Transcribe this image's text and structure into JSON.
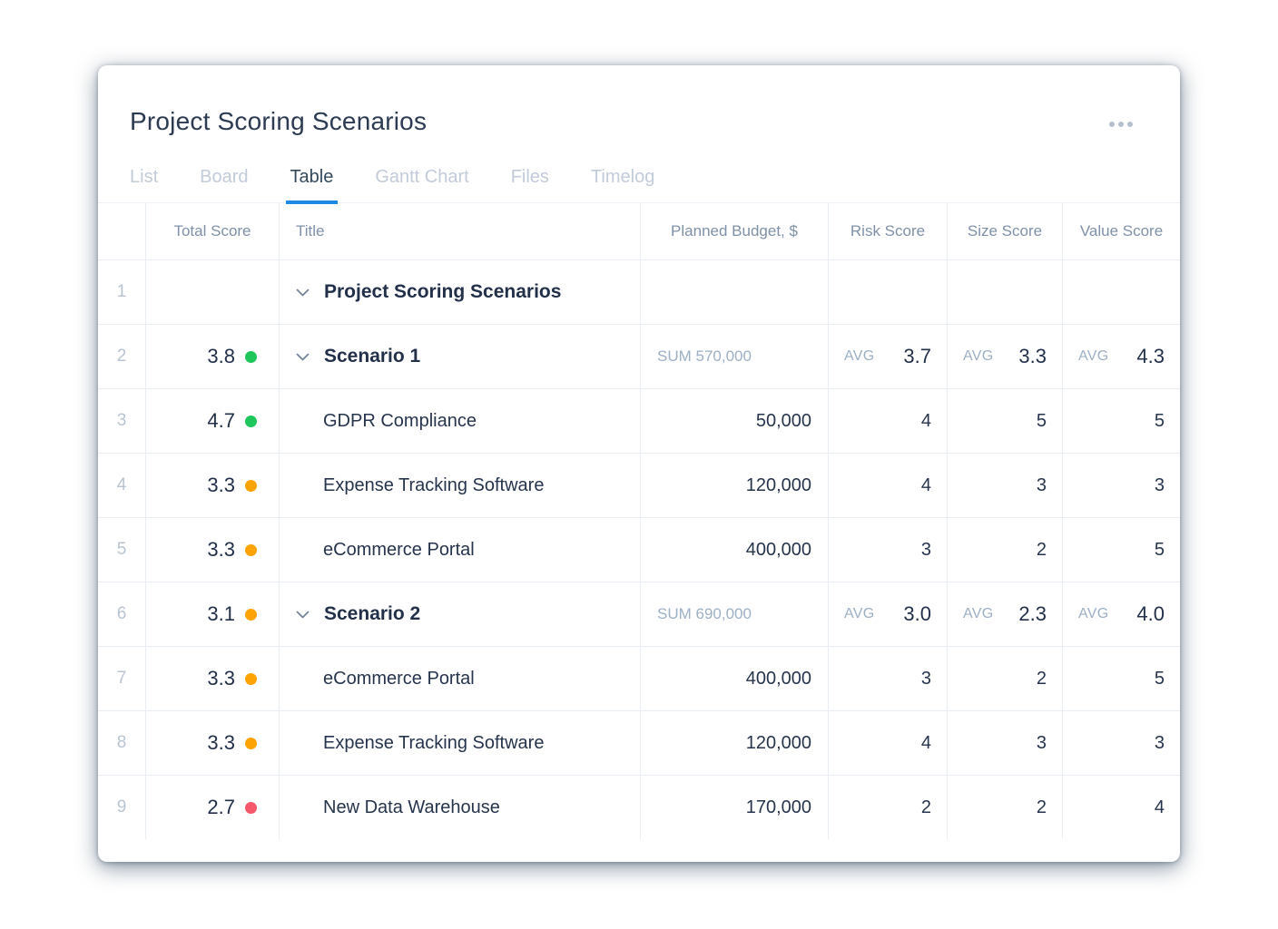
{
  "page": {
    "title": "Project Scoring Scenarios"
  },
  "menu": {
    "icon": "ellipsis-horizontal"
  },
  "tabs": [
    {
      "label": "List",
      "active": false
    },
    {
      "label": "Board",
      "active": false
    },
    {
      "label": "Table",
      "active": true
    },
    {
      "label": "Gantt Chart",
      "active": false
    },
    {
      "label": "Files",
      "active": false
    },
    {
      "label": "Timelog",
      "active": false
    }
  ],
  "table": {
    "columns": [
      {
        "key": "num",
        "label": ""
      },
      {
        "key": "total",
        "label": "Total Score"
      },
      {
        "key": "title",
        "label": "Title"
      },
      {
        "key": "budget",
        "label": "Planned Budget, $"
      },
      {
        "key": "risk",
        "label": "Risk Score"
      },
      {
        "key": "size",
        "label": "Size Score"
      },
      {
        "key": "value",
        "label": "Value Score"
      }
    ],
    "rows": [
      {
        "num": "1",
        "kind": "root",
        "chevron": true,
        "bold": true,
        "title": "Project Scoring Scenarios"
      },
      {
        "num": "2",
        "kind": "group",
        "chevron": true,
        "bold": true,
        "title": "Scenario 1",
        "total_score": "3.8",
        "dot": "green",
        "budget_sum": "SUM 570,000",
        "risk": {
          "label": "AVG",
          "value": "3.7"
        },
        "size": {
          "label": "AVG",
          "value": "3.3"
        },
        "value": {
          "label": "AVG",
          "value": "4.3"
        }
      },
      {
        "num": "3",
        "kind": "task",
        "title": "GDPR Compliance",
        "total_score": "4.7",
        "dot": "green",
        "budget": "50,000",
        "risk": {
          "value": "4"
        },
        "size": {
          "value": "5"
        },
        "value": {
          "value": "5"
        }
      },
      {
        "num": "4",
        "kind": "task",
        "title": "Expense Tracking Software",
        "total_score": "3.3",
        "dot": "orange",
        "budget": "120,000",
        "risk": {
          "value": "4"
        },
        "size": {
          "value": "3"
        },
        "value": {
          "value": "3"
        }
      },
      {
        "num": "5",
        "kind": "task",
        "title": "eCommerce Portal",
        "total_score": "3.3",
        "dot": "orange",
        "budget": "400,000",
        "risk": {
          "value": "3"
        },
        "size": {
          "value": "2"
        },
        "value": {
          "value": "5"
        }
      },
      {
        "num": "6",
        "kind": "group",
        "chevron": true,
        "bold": true,
        "title": "Scenario 2",
        "total_score": "3.1",
        "dot": "orange",
        "budget_sum": "SUM 690,000",
        "risk": {
          "label": "AVG",
          "value": "3.0"
        },
        "size": {
          "label": "AVG",
          "value": "2.3"
        },
        "value": {
          "label": "AVG",
          "value": "4.0"
        }
      },
      {
        "num": "7",
        "kind": "task",
        "title": "eCommerce Portal",
        "total_score": "3.3",
        "dot": "orange",
        "budget": "400,000",
        "risk": {
          "value": "3"
        },
        "size": {
          "value": "2"
        },
        "value": {
          "value": "5"
        }
      },
      {
        "num": "8",
        "kind": "task",
        "title": "Expense Tracking Software",
        "total_score": "3.3",
        "dot": "orange",
        "budget": "120,000",
        "risk": {
          "value": "4"
        },
        "size": {
          "value": "3"
        },
        "value": {
          "value": "3"
        }
      },
      {
        "num": "9",
        "kind": "task",
        "title": "New Data Warehouse",
        "total_score": "2.7",
        "dot": "red",
        "budget": "170,000",
        "risk": {
          "value": "2"
        },
        "size": {
          "value": "2"
        },
        "value": {
          "value": "4"
        }
      }
    ]
  },
  "colors": {
    "status_green": "#1ec65b",
    "status_orange": "#fda303",
    "status_red": "#f5586b",
    "accent_blue": "#1e88e5"
  }
}
